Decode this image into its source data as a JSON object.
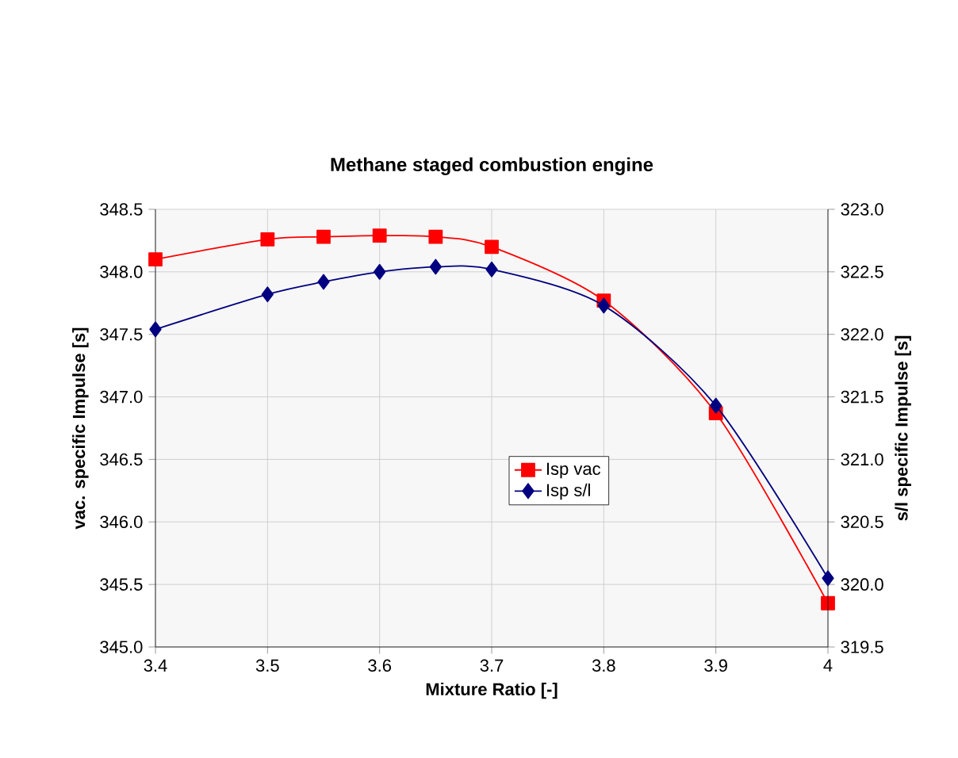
{
  "chart_data": {
    "type": "line",
    "title": "Methane staged combustion engine",
    "xlabel": "Mixture Ratio [-]",
    "ylabel": "vac. specific Impulse [s]",
    "y2label": "s/l specific Impulse [s]",
    "x": [
      3.4,
      3.5,
      3.55,
      3.6,
      3.65,
      3.7,
      3.8,
      3.9,
      4.0
    ],
    "series": [
      {
        "name": "Isp vac",
        "color": "#ff0000",
        "marker": "square",
        "values": [
          348.1,
          348.26,
          348.28,
          348.29,
          348.28,
          348.2,
          347.77,
          346.87,
          345.35
        ]
      },
      {
        "name": "Isp s/l",
        "color": "#000080",
        "marker": "diamond",
        "axis": "y2",
        "values": [
          322.04,
          322.32,
          322.42,
          322.5,
          322.54,
          322.52,
          322.23,
          321.43,
          320.05
        ]
      }
    ],
    "xlim": [
      3.4,
      4.0
    ],
    "xticks": [
      3.4,
      3.5,
      3.6,
      3.7,
      3.8,
      3.9,
      {
        "value": 4.0,
        "label": "4"
      }
    ],
    "ylim": [
      345.0,
      348.5
    ],
    "yticks": [
      {
        "value": 345.0,
        "label": "345.0"
      },
      {
        "value": 345.5,
        "label": "345.5"
      },
      {
        "value": 346.0,
        "label": "346.0"
      },
      {
        "value": 346.5,
        "label": "346.5"
      },
      {
        "value": 347.0,
        "label": "347.0"
      },
      {
        "value": 347.5,
        "label": "347.5"
      },
      {
        "value": 348.0,
        "label": "348.0"
      },
      {
        "value": 348.5,
        "label": "348.5"
      }
    ],
    "y2lim": [
      319.5,
      323.0
    ],
    "y2ticks": [
      {
        "value": 319.5,
        "label": "319.5"
      },
      {
        "value": 320.0,
        "label": "320.0"
      },
      {
        "value": 320.5,
        "label": "320.5"
      },
      {
        "value": 321.0,
        "label": "321.0"
      },
      {
        "value": 321.5,
        "label": "321.5"
      },
      {
        "value": 322.0,
        "label": "322.0"
      },
      {
        "value": 322.5,
        "label": "322.5"
      },
      {
        "value": 323.0,
        "label": "323.0"
      }
    ],
    "grid": true,
    "legend": "center"
  }
}
